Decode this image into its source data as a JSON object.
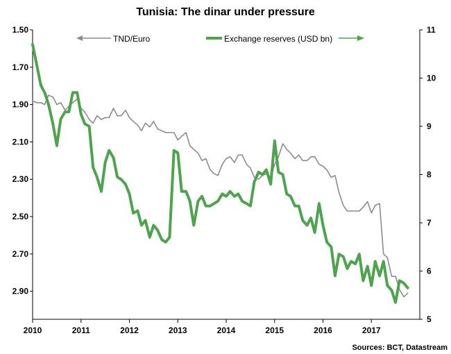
{
  "chart_data": {
    "type": "line",
    "title": "Tunisia: The dinar under pressure",
    "source": "Sources: BCT, Datastream",
    "left_axis": {
      "ylim": [
        1.5,
        3.05
      ],
      "inverted": true,
      "ticks": [
        "1.50",
        "1.70",
        "1.90",
        "2.10",
        "2.30",
        "2.50",
        "2.70",
        "2.90"
      ]
    },
    "right_axis": {
      "ylim": [
        5,
        11
      ],
      "ticks": [
        "11",
        "10",
        "9",
        "8",
        "7",
        "6",
        "5"
      ]
    },
    "x_axis": {
      "xlim": [
        2010,
        2018
      ],
      "ticks": [
        "2010",
        "2011",
        "2012",
        "2013",
        "2014",
        "2015",
        "2016",
        "2017"
      ]
    },
    "grid": false,
    "legend_placement": "top",
    "series": [
      {
        "name": "TND/Euro",
        "axis": "left",
        "color": "#8c8c8c",
        "arrow": "left",
        "points": [
          [
            2010.0,
            1.88
          ],
          [
            2010.08,
            1.89
          ],
          [
            2010.17,
            1.89
          ],
          [
            2010.25,
            1.9
          ],
          [
            2010.33,
            1.85
          ],
          [
            2010.42,
            1.86
          ],
          [
            2010.5,
            1.9
          ],
          [
            2010.58,
            1.89
          ],
          [
            2010.67,
            1.93
          ],
          [
            2010.75,
            1.91
          ],
          [
            2010.83,
            1.89
          ],
          [
            2010.92,
            1.87
          ],
          [
            2011.0,
            1.92
          ],
          [
            2011.08,
            1.94
          ],
          [
            2011.17,
            1.98
          ],
          [
            2011.25,
            2.0
          ],
          [
            2011.33,
            1.96
          ],
          [
            2011.42,
            1.98
          ],
          [
            2011.5,
            1.97
          ],
          [
            2011.58,
            1.97
          ],
          [
            2011.67,
            1.92
          ],
          [
            2011.75,
            1.96
          ],
          [
            2011.83,
            1.96
          ],
          [
            2011.92,
            1.93
          ],
          [
            2012.0,
            1.97
          ],
          [
            2012.08,
            1.99
          ],
          [
            2012.17,
            2.01
          ],
          [
            2012.25,
            2.04
          ],
          [
            2012.33,
            2.0
          ],
          [
            2012.42,
            2.02
          ],
          [
            2012.5,
            1.99
          ],
          [
            2012.58,
            2.03
          ],
          [
            2012.67,
            2.04
          ],
          [
            2012.75,
            2.05
          ],
          [
            2012.83,
            2.05
          ],
          [
            2012.92,
            2.05
          ],
          [
            2013.0,
            2.09
          ],
          [
            2013.08,
            2.07
          ],
          [
            2013.17,
            2.05
          ],
          [
            2013.25,
            2.12
          ],
          [
            2013.33,
            2.14
          ],
          [
            2013.42,
            2.16
          ],
          [
            2013.5,
            2.2
          ],
          [
            2013.58,
            2.19
          ],
          [
            2013.67,
            2.25
          ],
          [
            2013.75,
            2.27
          ],
          [
            2013.83,
            2.28
          ],
          [
            2013.92,
            2.22
          ],
          [
            2014.0,
            2.19
          ],
          [
            2014.08,
            2.18
          ],
          [
            2014.17,
            2.21
          ],
          [
            2014.25,
            2.17
          ],
          [
            2014.33,
            2.17
          ],
          [
            2014.42,
            2.22
          ],
          [
            2014.5,
            2.24
          ],
          [
            2014.58,
            2.29
          ],
          [
            2014.67,
            2.3
          ],
          [
            2014.75,
            2.28
          ],
          [
            2014.83,
            2.27
          ],
          [
            2014.92,
            2.29
          ],
          [
            2015.0,
            2.22
          ],
          [
            2015.08,
            2.18
          ],
          [
            2015.17,
            2.11
          ],
          [
            2015.25,
            2.14
          ],
          [
            2015.33,
            2.16
          ],
          [
            2015.42,
            2.19
          ],
          [
            2015.5,
            2.17
          ],
          [
            2015.58,
            2.2
          ],
          [
            2015.67,
            2.2
          ],
          [
            2015.75,
            2.18
          ],
          [
            2015.83,
            2.18
          ],
          [
            2015.92,
            2.22
          ],
          [
            2016.0,
            2.23
          ],
          [
            2016.08,
            2.25
          ],
          [
            2016.17,
            2.29
          ],
          [
            2016.25,
            2.28
          ],
          [
            2016.33,
            2.37
          ],
          [
            2016.42,
            2.44
          ],
          [
            2016.5,
            2.47
          ],
          [
            2016.58,
            2.47
          ],
          [
            2016.67,
            2.47
          ],
          [
            2016.75,
            2.47
          ],
          [
            2016.83,
            2.45
          ],
          [
            2016.92,
            2.42
          ],
          [
            2017.0,
            2.48
          ],
          [
            2017.08,
            2.44
          ],
          [
            2017.17,
            2.43
          ],
          [
            2017.25,
            2.7
          ],
          [
            2017.33,
            2.72
          ],
          [
            2017.42,
            2.82
          ],
          [
            2017.5,
            2.82
          ],
          [
            2017.58,
            2.89
          ],
          [
            2017.67,
            2.93
          ],
          [
            2017.75,
            2.91
          ]
        ]
      },
      {
        "name": "Exchange reserves (USD bn)",
        "axis": "right",
        "color": "#4ea44e",
        "arrow": "right",
        "points": [
          [
            2010.0,
            10.7
          ],
          [
            2010.08,
            10.3
          ],
          [
            2010.17,
            9.85
          ],
          [
            2010.25,
            9.7
          ],
          [
            2010.33,
            9.45
          ],
          [
            2010.42,
            9.05
          ],
          [
            2010.5,
            8.6
          ],
          [
            2010.58,
            9.15
          ],
          [
            2010.67,
            9.3
          ],
          [
            2010.75,
            9.3
          ],
          [
            2010.83,
            9.7
          ],
          [
            2010.92,
            9.7
          ],
          [
            2011.0,
            9.25
          ],
          [
            2011.08,
            9.05
          ],
          [
            2011.17,
            9.0
          ],
          [
            2011.25,
            8.15
          ],
          [
            2011.33,
            7.95
          ],
          [
            2011.42,
            7.65
          ],
          [
            2011.5,
            8.25
          ],
          [
            2011.58,
            8.5
          ],
          [
            2011.67,
            8.35
          ],
          [
            2011.75,
            7.95
          ],
          [
            2011.83,
            7.9
          ],
          [
            2011.92,
            7.8
          ],
          [
            2012.0,
            7.6
          ],
          [
            2012.08,
            7.2
          ],
          [
            2012.17,
            7.25
          ],
          [
            2012.25,
            6.95
          ],
          [
            2012.33,
            7.05
          ],
          [
            2012.42,
            6.7
          ],
          [
            2012.5,
            6.95
          ],
          [
            2012.58,
            6.85
          ],
          [
            2012.67,
            6.65
          ],
          [
            2012.75,
            6.6
          ],
          [
            2012.83,
            6.7
          ],
          [
            2012.92,
            8.5
          ],
          [
            2013.0,
            8.45
          ],
          [
            2013.08,
            7.65
          ],
          [
            2013.17,
            7.65
          ],
          [
            2013.25,
            7.45
          ],
          [
            2013.33,
            6.95
          ],
          [
            2013.42,
            7.45
          ],
          [
            2013.5,
            7.55
          ],
          [
            2013.58,
            7.35
          ],
          [
            2013.67,
            7.35
          ],
          [
            2013.75,
            7.4
          ],
          [
            2013.83,
            7.45
          ],
          [
            2013.92,
            7.6
          ],
          [
            2014.0,
            7.55
          ],
          [
            2014.08,
            7.65
          ],
          [
            2014.17,
            7.55
          ],
          [
            2014.25,
            7.6
          ],
          [
            2014.33,
            7.45
          ],
          [
            2014.42,
            7.4
          ],
          [
            2014.5,
            7.35
          ],
          [
            2014.58,
            7.85
          ],
          [
            2014.67,
            8.05
          ],
          [
            2014.75,
            8.0
          ],
          [
            2014.83,
            8.1
          ],
          [
            2014.92,
            7.8
          ],
          [
            2015.0,
            8.7
          ],
          [
            2015.08,
            8.05
          ],
          [
            2015.17,
            8.0
          ],
          [
            2015.25,
            7.6
          ],
          [
            2015.33,
            7.55
          ],
          [
            2015.42,
            7.35
          ],
          [
            2015.5,
            7.35
          ],
          [
            2015.58,
            7.05
          ],
          [
            2015.67,
            6.95
          ],
          [
            2015.75,
            7.1
          ],
          [
            2015.83,
            6.8
          ],
          [
            2015.92,
            7.4
          ],
          [
            2016.0,
            6.95
          ],
          [
            2016.08,
            6.6
          ],
          [
            2016.17,
            6.5
          ],
          [
            2016.25,
            5.9
          ],
          [
            2016.33,
            6.35
          ],
          [
            2016.42,
            6.3
          ],
          [
            2016.5,
            6.05
          ],
          [
            2016.58,
            6.2
          ],
          [
            2016.67,
            6.15
          ],
          [
            2016.75,
            6.35
          ],
          [
            2016.83,
            5.8
          ],
          [
            2016.92,
            6.1
          ],
          [
            2017.0,
            5.7
          ],
          [
            2017.08,
            6.2
          ],
          [
            2017.17,
            5.9
          ],
          [
            2017.25,
            6.2
          ],
          [
            2017.33,
            5.7
          ],
          [
            2017.42,
            5.6
          ],
          [
            2017.5,
            5.35
          ],
          [
            2017.58,
            5.8
          ],
          [
            2017.67,
            5.75
          ],
          [
            2017.75,
            5.65
          ]
        ]
      }
    ]
  }
}
